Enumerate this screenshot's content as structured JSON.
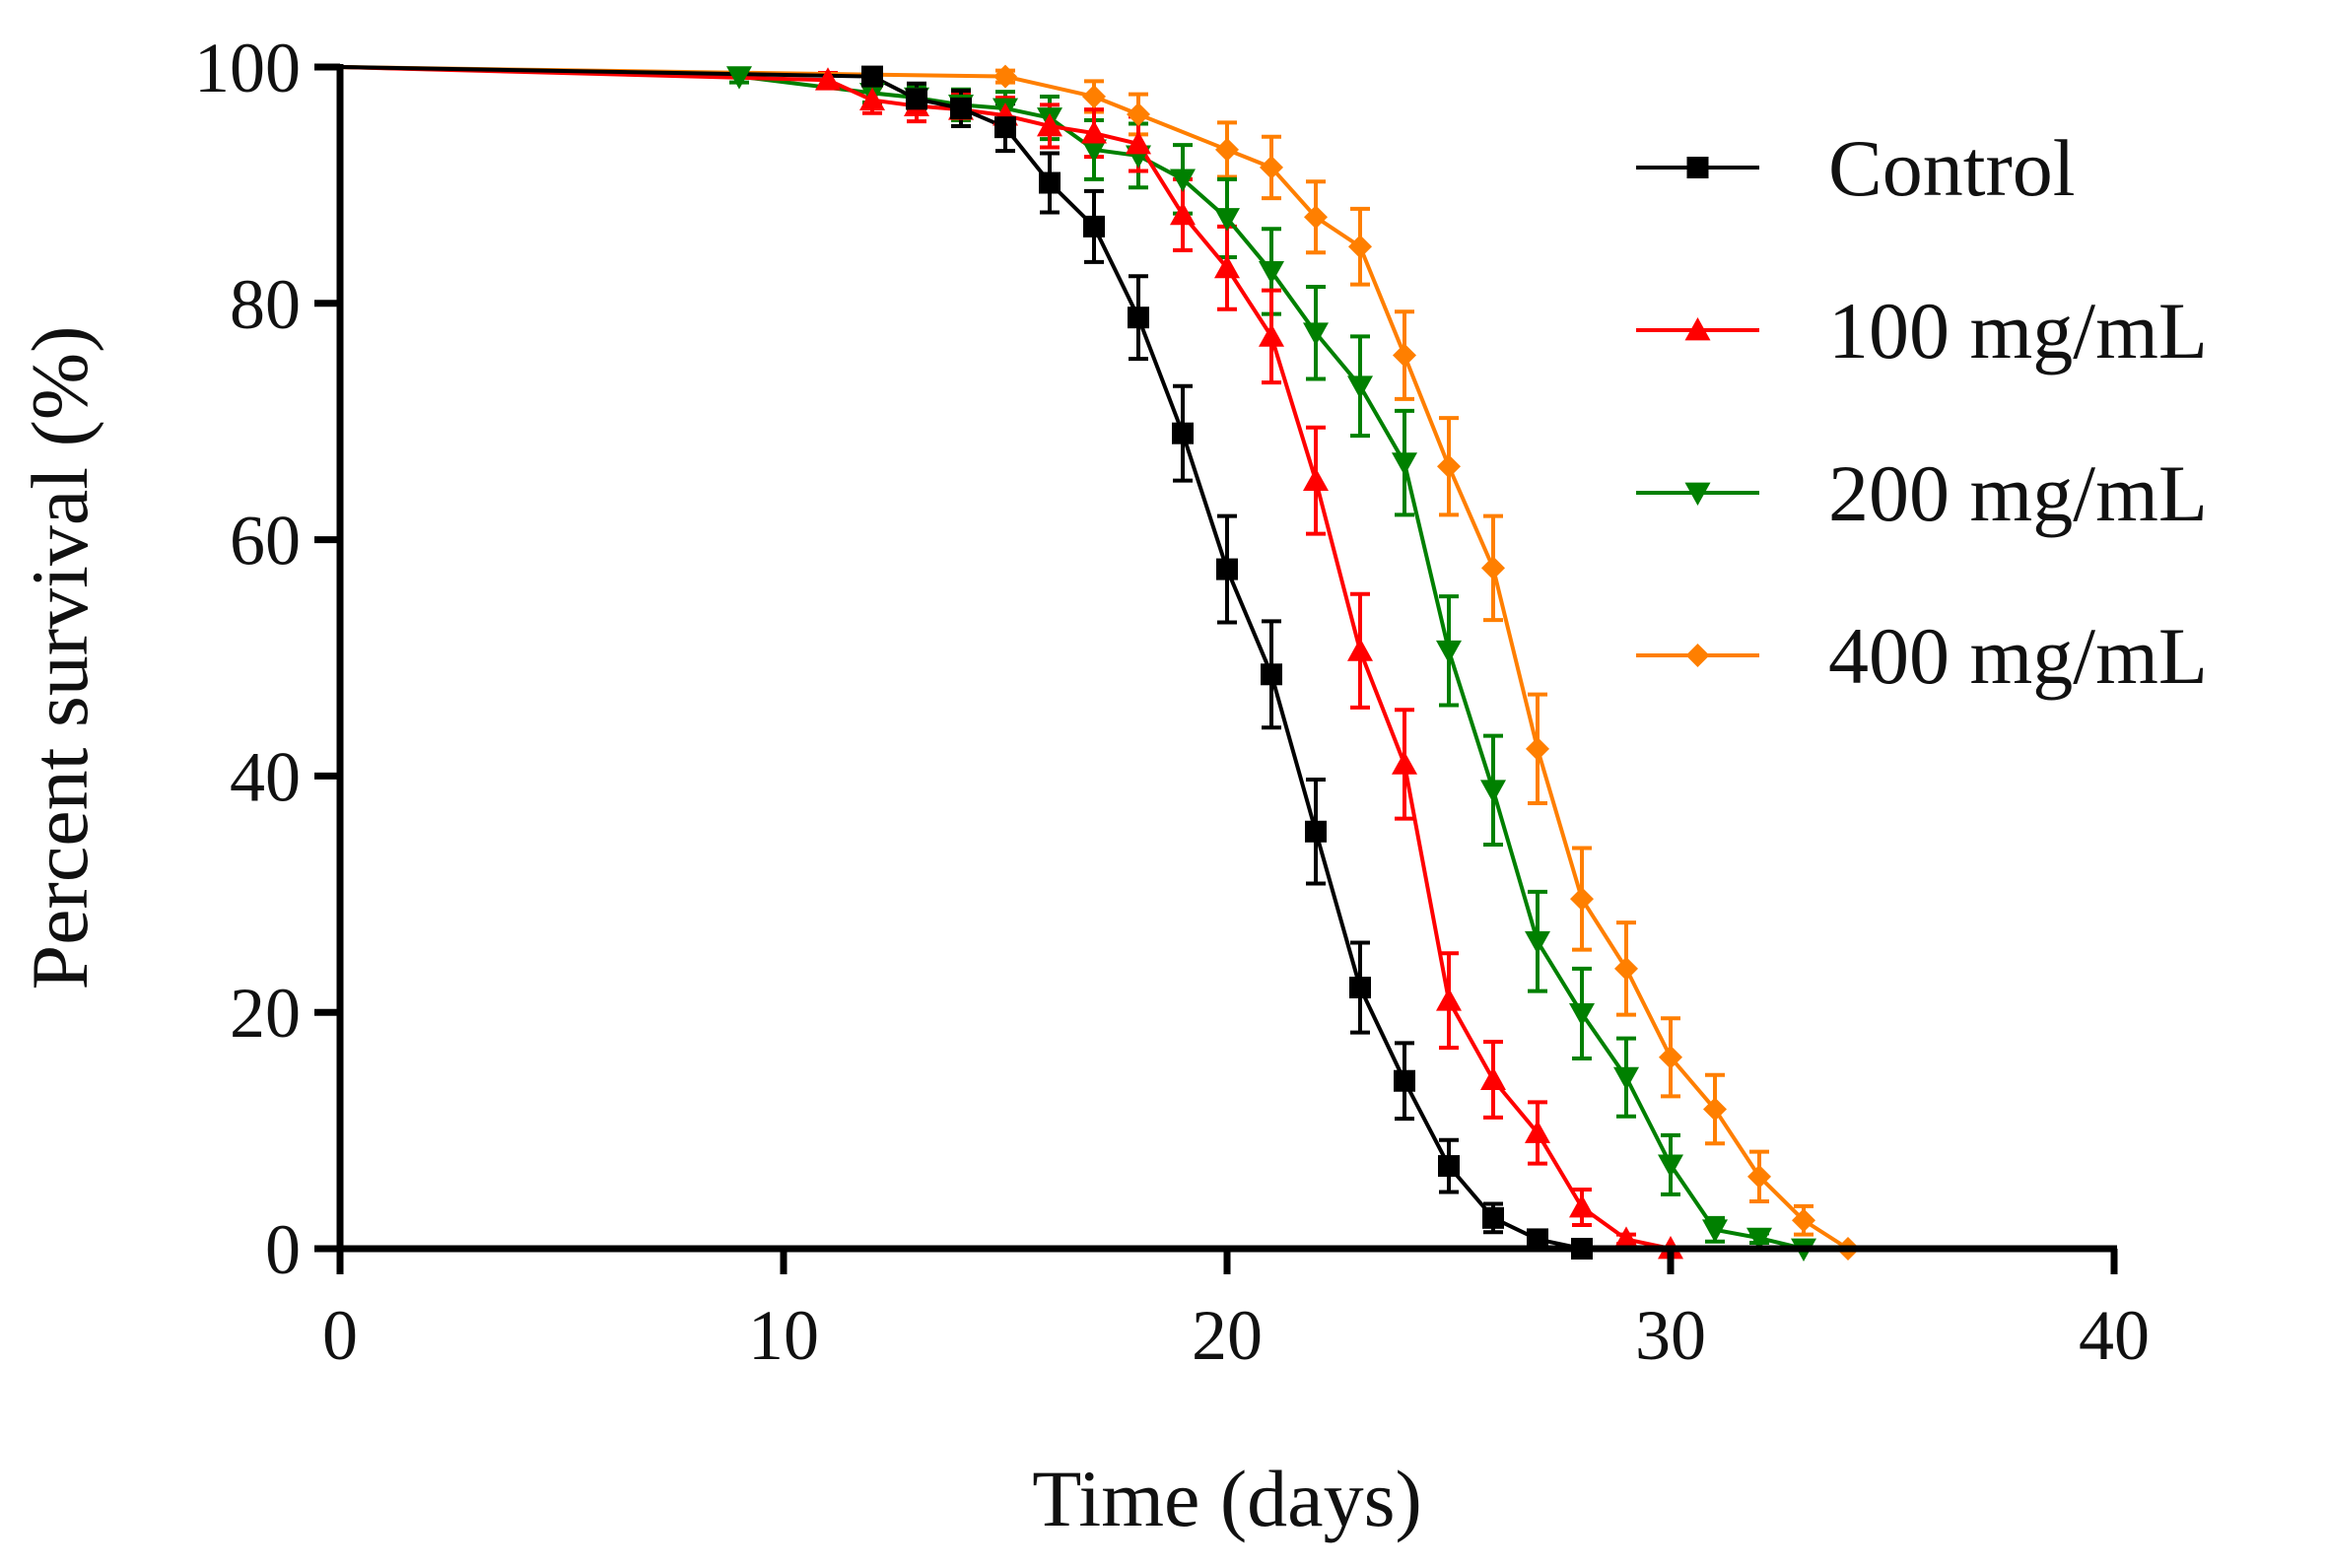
{
  "chart_data": {
    "type": "line",
    "title": "",
    "xlabel": "Time (days)",
    "ylabel": "Percent survival (%)",
    "xlim": [
      0,
      40
    ],
    "ylim": [
      0,
      100
    ],
    "xticks": [
      0,
      10,
      20,
      30,
      40
    ],
    "yticks": [
      0,
      20,
      40,
      60,
      80,
      100
    ],
    "grid": false,
    "legend_position": "top-right",
    "series": [
      {
        "name": "Control",
        "color": "#000000",
        "marker": "square",
        "points": [
          {
            "x": 0,
            "y": 100,
            "err": 0
          },
          {
            "x": 12,
            "y": 99.2,
            "err": 0.5
          },
          {
            "x": 13,
            "y": 97.3,
            "err": 1.3
          },
          {
            "x": 14,
            "y": 96.5,
            "err": 1.5
          },
          {
            "x": 15,
            "y": 94.9,
            "err": 2.0
          },
          {
            "x": 16,
            "y": 90.2,
            "err": 2.5
          },
          {
            "x": 17,
            "y": 86.5,
            "err": 3.0
          },
          {
            "x": 18,
            "y": 78.8,
            "err": 3.5
          },
          {
            "x": 19,
            "y": 69.0,
            "err": 4.0
          },
          {
            "x": 20,
            "y": 57.5,
            "err": 4.5
          },
          {
            "x": 21,
            "y": 48.6,
            "err": 4.5
          },
          {
            "x": 22,
            "y": 35.3,
            "err": 4.4
          },
          {
            "x": 23,
            "y": 22.1,
            "err": 3.8
          },
          {
            "x": 24,
            "y": 14.2,
            "err": 3.2
          },
          {
            "x": 25,
            "y": 7.0,
            "err": 2.2
          },
          {
            "x": 26,
            "y": 2.6,
            "err": 1.2
          },
          {
            "x": 27,
            "y": 0.8,
            "err": 0.4
          },
          {
            "x": 28,
            "y": 0.0,
            "err": 0
          }
        ]
      },
      {
        "name": "100 mg/mL",
        "color": "#ff0000",
        "marker": "triangle-up",
        "points": [
          {
            "x": 0,
            "y": 100,
            "err": 0
          },
          {
            "x": 11,
            "y": 98.9,
            "err": 0.6
          },
          {
            "x": 12,
            "y": 97.2,
            "err": 1.1
          },
          {
            "x": 13,
            "y": 96.7,
            "err": 1.3
          },
          {
            "x": 14,
            "y": 96.4,
            "err": 1.4
          },
          {
            "x": 15,
            "y": 95.9,
            "err": 1.5
          },
          {
            "x": 16,
            "y": 95.0,
            "err": 1.8
          },
          {
            "x": 17,
            "y": 94.4,
            "err": 2.0
          },
          {
            "x": 18,
            "y": 93.5,
            "err": 2.3
          },
          {
            "x": 19,
            "y": 87.5,
            "err": 3.0
          },
          {
            "x": 20,
            "y": 83.0,
            "err": 3.5
          },
          {
            "x": 21,
            "y": 77.2,
            "err": 3.9
          },
          {
            "x": 22,
            "y": 65.0,
            "err": 4.5
          },
          {
            "x": 23,
            "y": 50.6,
            "err": 4.8
          },
          {
            "x": 24,
            "y": 41.0,
            "err": 4.6
          },
          {
            "x": 25,
            "y": 21.0,
            "err": 4.0
          },
          {
            "x": 26,
            "y": 14.3,
            "err": 3.2
          },
          {
            "x": 27,
            "y": 9.8,
            "err": 2.6
          },
          {
            "x": 28,
            "y": 3.5,
            "err": 1.5
          },
          {
            "x": 29,
            "y": 0.8,
            "err": 0.4
          },
          {
            "x": 30,
            "y": 0.0,
            "err": 0
          }
        ]
      },
      {
        "name": "200 mg/mL",
        "color": "#008000",
        "marker": "triangle-down",
        "points": [
          {
            "x": 0,
            "y": 100,
            "err": 0
          },
          {
            "x": 9,
            "y": 99.2,
            "err": 0.5
          },
          {
            "x": 12,
            "y": 97.8,
            "err": 0.8
          },
          {
            "x": 13,
            "y": 97.4,
            "err": 1.0
          },
          {
            "x": 14,
            "y": 96.8,
            "err": 1.3
          },
          {
            "x": 15,
            "y": 96.5,
            "err": 1.4
          },
          {
            "x": 16,
            "y": 95.7,
            "err": 1.8
          },
          {
            "x": 17,
            "y": 93.0,
            "err": 2.5
          },
          {
            "x": 18,
            "y": 92.5,
            "err": 2.7
          },
          {
            "x": 19,
            "y": 90.5,
            "err": 2.9
          },
          {
            "x": 20,
            "y": 87.2,
            "err": 3.3
          },
          {
            "x": 21,
            "y": 82.7,
            "err": 3.6
          },
          {
            "x": 22,
            "y": 77.5,
            "err": 3.9
          },
          {
            "x": 23,
            "y": 73.0,
            "err": 4.2
          },
          {
            "x": 24,
            "y": 66.5,
            "err": 4.4
          },
          {
            "x": 25,
            "y": 50.6,
            "err": 4.6
          },
          {
            "x": 26,
            "y": 38.8,
            "err": 4.6
          },
          {
            "x": 27,
            "y": 26.0,
            "err": 4.2
          },
          {
            "x": 28,
            "y": 19.9,
            "err": 3.8
          },
          {
            "x": 29,
            "y": 14.5,
            "err": 3.3
          },
          {
            "x": 30,
            "y": 7.1,
            "err": 2.5
          },
          {
            "x": 31,
            "y": 1.6,
            "err": 1.0
          },
          {
            "x": 32,
            "y": 0.9,
            "err": 0.4
          },
          {
            "x": 33,
            "y": 0.0,
            "err": 0
          }
        ]
      },
      {
        "name": "400 mg/mL",
        "color": "#ff7f00",
        "marker": "diamond",
        "points": [
          {
            "x": 0,
            "y": 100,
            "err": 0
          },
          {
            "x": 15,
            "y": 99.2,
            "err": 0.5
          },
          {
            "x": 17,
            "y": 97.5,
            "err": 1.3
          },
          {
            "x": 18,
            "y": 96.0,
            "err": 1.7
          },
          {
            "x": 20,
            "y": 93.0,
            "err": 2.3
          },
          {
            "x": 21,
            "y": 91.5,
            "err": 2.6
          },
          {
            "x": 22,
            "y": 87.3,
            "err": 3.0
          },
          {
            "x": 23,
            "y": 84.8,
            "err": 3.2
          },
          {
            "x": 24,
            "y": 75.6,
            "err": 3.7
          },
          {
            "x": 25,
            "y": 66.2,
            "err": 4.1
          },
          {
            "x": 26,
            "y": 57.6,
            "err": 4.4
          },
          {
            "x": 27,
            "y": 42.3,
            "err": 4.6
          },
          {
            "x": 28,
            "y": 29.6,
            "err": 4.3
          },
          {
            "x": 29,
            "y": 23.7,
            "err": 3.9
          },
          {
            "x": 30,
            "y": 16.2,
            "err": 3.3
          },
          {
            "x": 31,
            "y": 11.8,
            "err": 2.9
          },
          {
            "x": 32,
            "y": 6.1,
            "err": 2.1
          },
          {
            "x": 33,
            "y": 2.4,
            "err": 1.2
          },
          {
            "x": 34,
            "y": 0.0,
            "err": 0
          }
        ]
      }
    ]
  }
}
